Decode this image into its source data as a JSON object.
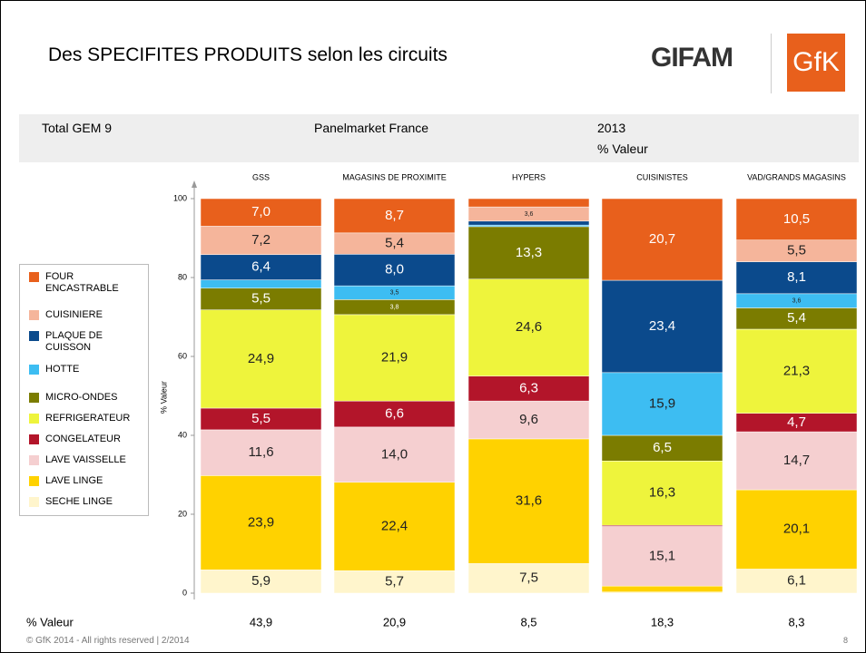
{
  "header": {
    "title": "Des SPECIFITES PRODUITS selon les circuits",
    "logos": [
      "GIFAM",
      "GfK"
    ]
  },
  "info_bar": {
    "left": "Total GEM 9",
    "middle": "Panelmarket France",
    "right": "2013",
    "right_sub": "% Valeur"
  },
  "chart_data": {
    "type": "stacked_bar",
    "y_label": "% Valeur",
    "categories": [
      "GSS",
      "MAGASINS DE PROXIMITE",
      "HYPERS",
      "CUISINISTES",
      "VAD/GRANDS MAGASINS"
    ],
    "ylim": [
      0,
      100
    ],
    "yticks": [
      0,
      20,
      40,
      60,
      80,
      100
    ],
    "series": [
      {
        "name": "SECHE LINGE",
        "color": "#fff5cc",
        "values": [
          5.9,
          5.7,
          7.5,
          0.3,
          6.1
        ],
        "value_labels": [
          "5,9",
          "5,7",
          "7,5",
          null,
          "6,1"
        ]
      },
      {
        "name": "LAVE LINGE",
        "color": "#ffd200",
        "values": [
          23.9,
          22.4,
          31.6,
          1.5,
          20.1
        ],
        "value_labels": [
          "23,9",
          "22,4",
          "31,6",
          null,
          "20,1"
        ]
      },
      {
        "name": "LAVE VAISSELLE",
        "color": "#f5cfd0",
        "values": [
          11.6,
          14.0,
          9.6,
          15.1,
          14.7
        ],
        "value_labels": [
          "11,6",
          "14,0",
          "9,6",
          "15,1",
          "14,7"
        ]
      },
      {
        "name": "CONGELATEUR",
        "color": "#b3152a",
        "values": [
          5.5,
          6.6,
          6.3,
          0.3,
          4.7
        ],
        "value_labels": [
          "5,5",
          "6,6",
          "6,3",
          null,
          "4,7"
        ]
      },
      {
        "name": "REFRIGERATEUR",
        "color": "#eef43c",
        "values": [
          24.9,
          21.9,
          24.6,
          16.3,
          21.3
        ],
        "value_labels": [
          "24,9",
          "21,9",
          "24,6",
          "16,3",
          "21,3"
        ]
      },
      {
        "name": "MICRO-ONDES",
        "color": "#7b7c00",
        "values": [
          5.5,
          3.8,
          13.3,
          6.5,
          5.4
        ],
        "value_labels": [
          "5,5",
          "3,8",
          "13,3",
          "6,5",
          "5,4"
        ]
      },
      {
        "name": "HOTTE",
        "color": "#3dbdf2",
        "values": [
          2.1,
          3.5,
          0.4,
          15.9,
          3.6
        ],
        "value_labels": [
          null,
          "3,5",
          null,
          "15,9",
          "3,6"
        ]
      },
      {
        "name": "PLAQUE DE CUISSON",
        "color": "#0b4a8c",
        "values": [
          6.4,
          8.0,
          1.0,
          23.4,
          8.1
        ],
        "value_labels": [
          "6,4",
          "8,0",
          null,
          "23,4",
          "8,1"
        ]
      },
      {
        "name": "CUISINIERE",
        "color": "#f5b59b",
        "values": [
          7.2,
          5.4,
          3.6,
          0.0,
          5.5
        ],
        "value_labels": [
          "7,2",
          "5,4",
          "3,6",
          null,
          "5,5"
        ]
      },
      {
        "name": "FOUR ENCASTRABLE",
        "color": "#e8601c",
        "values": [
          7.0,
          8.7,
          2.1,
          20.7,
          10.5
        ],
        "value_labels": [
          "7,0",
          "8,7",
          null,
          "20,7",
          "10,5"
        ]
      }
    ],
    "totals": {
      "label": "% Valeur",
      "cells": [
        "43,9",
        "20,9",
        "8,5",
        "18,3",
        "8,3"
      ]
    }
  },
  "footer": {
    "copyright": "© GfK 2014 - All rights reserved | 2/2014",
    "page": "8"
  }
}
